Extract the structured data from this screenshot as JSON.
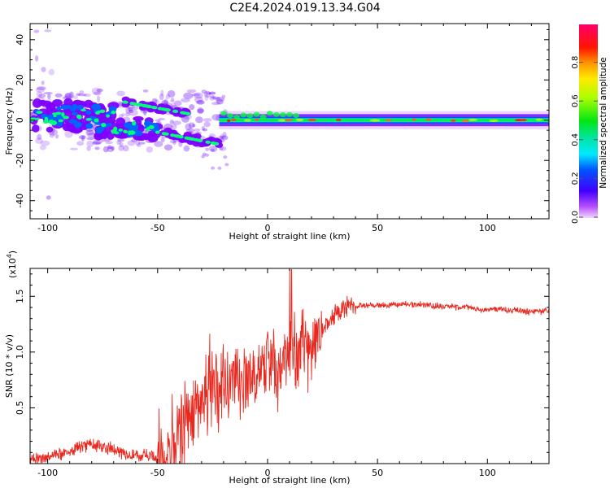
{
  "title": "C2E4.2024.019.13.34.G04",
  "colors": {
    "snr_line": "#e8281e",
    "axis": "#000000"
  },
  "chart_data": [
    {
      "type": "heatmap",
      "panel": "top",
      "xlabel": "Height of straight line (km)",
      "ylabel": "Frequency (Hz)",
      "xlim": [
        -108,
        128
      ],
      "ylim": [
        -49,
        48
      ],
      "xticks": [
        -100,
        -50,
        0,
        50,
        100
      ],
      "xtick_labels": [
        "-100",
        "-50",
        "0",
        "50",
        "100"
      ],
      "yticks": [
        -40,
        -20,
        0,
        20,
        40
      ],
      "ytick_labels": [
        "-40",
        "-20",
        "0",
        "20",
        "40"
      ],
      "colorbar": {
        "label": "Normalized spectral amplitude",
        "range": [
          0,
          1
        ],
        "ticks": [
          0.0,
          0.2,
          0.4,
          0.6,
          0.8
        ],
        "tick_labels": [
          "0.0",
          "0.2",
          "0.4",
          "0.6",
          "0.8"
        ]
      },
      "features": [
        {
          "name": "noisy-region",
          "x": [
            -108,
            -20
          ],
          "freq_center": 2,
          "spread": 8
        },
        {
          "name": "upper-streak",
          "x": [
            -65,
            -35
          ],
          "freq": [
            9,
            3
          ]
        },
        {
          "name": "lower-streak",
          "x": [
            -50,
            -22
          ],
          "freq": [
            -6,
            -12
          ]
        },
        {
          "name": "stable-band",
          "x": [
            -22,
            128
          ],
          "freq": 0,
          "halfwidth": 3
        }
      ]
    },
    {
      "type": "line",
      "panel": "bottom",
      "xlabel": "Height of straight line (km)",
      "ylabel": "SNR (10 * v/v)",
      "y_multiplier_label": "(x10",
      "y_multiplier_exp": "4",
      "xlim": [
        -108,
        128
      ],
      "ylim": [
        0.0,
        1.75
      ],
      "xticks": [
        -100,
        -50,
        0,
        50,
        100
      ],
      "xtick_labels": [
        "-100",
        "-50",
        "0",
        "50",
        "100"
      ],
      "yticks": [
        0.5,
        1.0,
        1.5
      ],
      "ytick_labels": [
        "0.5",
        "1.0",
        "1.5"
      ],
      "series": [
        {
          "name": "SNR",
          "x": [
            -108,
            -100,
            -90,
            -80,
            -70,
            -60,
            -50,
            -42,
            -35,
            -30,
            -25,
            -20,
            -15,
            -10,
            -5,
            0,
            5,
            10,
            15,
            20,
            25,
            30,
            35,
            40,
            50,
            60,
            70,
            80,
            90,
            100,
            110,
            120,
            128
          ],
          "y": [
            0.02,
            0.07,
            0.12,
            0.18,
            0.12,
            0.08,
            0.05,
            0.18,
            0.5,
            0.6,
            0.68,
            0.65,
            0.7,
            0.72,
            0.78,
            0.9,
            0.85,
            1.0,
            0.98,
            1.05,
            1.2,
            1.32,
            1.4,
            1.42,
            1.42,
            1.43,
            1.42,
            1.41,
            1.4,
            1.38,
            1.38,
            1.36,
            1.37
          ]
        }
      ]
    }
  ]
}
